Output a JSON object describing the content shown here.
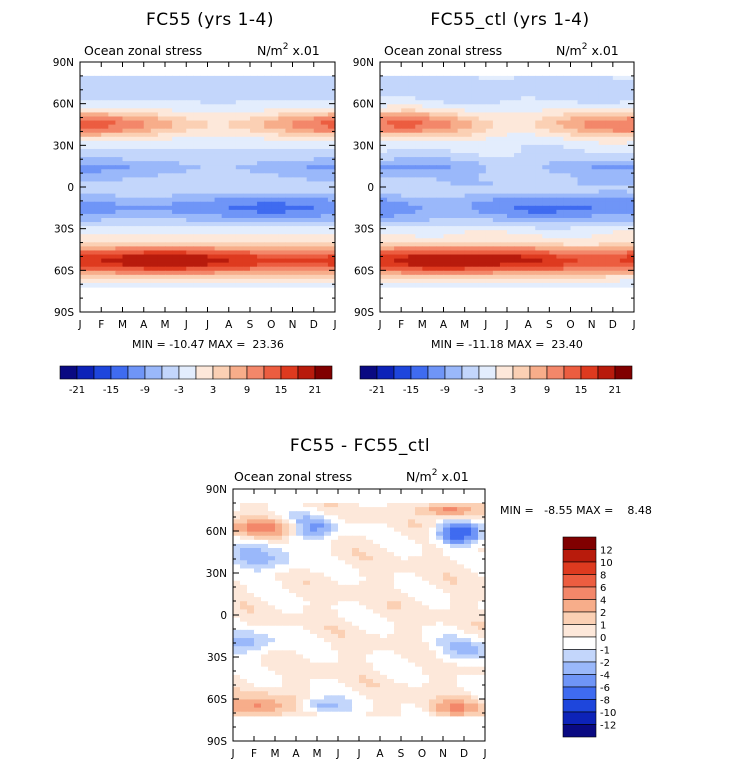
{
  "colors": {
    "palette_24": [
      "#0a0a82",
      "#0d23b8",
      "#1e46dc",
      "#3f6bf0",
      "#6f95f7",
      "#9ab8fa",
      "#c3d6fb",
      "#e3edfd",
      "#fde8da",
      "#fbd0b4",
      "#f7ad8a",
      "#f3876a",
      "#ec5d40",
      "#de3a1f",
      "#b81b0c",
      "#800000"
    ],
    "palette_diff": [
      "#0a0a82",
      "#0d23b8",
      "#1e46dc",
      "#3f6bf0",
      "#6f95f7",
      "#9ab8fa",
      "#c3d6fb",
      "#ffffff",
      "#fde8da",
      "#fbd0b4",
      "#f7ad8a",
      "#f3876a",
      "#ec5d40",
      "#de3a1f",
      "#b81b0c",
      "#800000"
    ]
  },
  "chart_data": [
    {
      "type": "heatmap",
      "title": "FC55 (yrs 1-4)",
      "subtitle_left": "Ocean zonal stress",
      "units_base": "N/m",
      "units_exp": "2",
      "units_scale": " x.01",
      "x_ticks": [
        "J",
        "F",
        "M",
        "A",
        "M",
        "J",
        "J",
        "A",
        "S",
        "O",
        "N",
        "D",
        "J"
      ],
      "y_ticks": [
        "90N",
        "60N",
        "30N",
        "0",
        "30S",
        "60S",
        "90S"
      ],
      "stats": "MIN = -10.47 MAX =  23.36",
      "colorbar_labels": [
        "-21",
        "-15",
        "-9",
        "-3",
        "3",
        "9",
        "15",
        "21"
      ],
      "levels": [
        -21,
        -18,
        -15,
        -12,
        -9,
        -6,
        -3,
        0,
        3,
        6,
        9,
        12,
        15,
        18,
        21,
        24
      ]
    },
    {
      "type": "heatmap",
      "title": "FC55_ctl (yrs 1-4)",
      "subtitle_left": "Ocean zonal stress",
      "units_base": "N/m",
      "units_exp": "2",
      "units_scale": " x.01",
      "x_ticks": [
        "J",
        "F",
        "M",
        "A",
        "M",
        "J",
        "J",
        "A",
        "S",
        "O",
        "N",
        "D",
        "J"
      ],
      "y_ticks": [
        "90N",
        "60N",
        "30N",
        "0",
        "30S",
        "60S",
        "90S"
      ],
      "stats": "MIN = -11.18 MAX =  23.40",
      "colorbar_labels": [
        "-21",
        "-15",
        "-9",
        "-3",
        "3",
        "9",
        "15",
        "21"
      ],
      "levels": [
        -21,
        -18,
        -15,
        -12,
        -9,
        -6,
        -3,
        0,
        3,
        6,
        9,
        12,
        15,
        18,
        21,
        24
      ]
    },
    {
      "type": "heatmap",
      "title": "FC55 - FC55_ctl",
      "subtitle_left": "Ocean zonal stress",
      "units_base": "N/m",
      "units_exp": "2",
      "units_scale": " x.01",
      "x_ticks": [
        "J",
        "F",
        "M",
        "A",
        "M",
        "J",
        "J",
        "A",
        "S",
        "O",
        "N",
        "D",
        "J"
      ],
      "y_ticks": [
        "90N",
        "60N",
        "30N",
        "0",
        "30S",
        "60S",
        "90S"
      ],
      "stats": "MIN =   -8.55 MAX =    8.48",
      "colorbar_labels": [
        "12",
        "10",
        "8",
        "6",
        "4",
        "2",
        "1",
        "0",
        "-1",
        "-2",
        "-4",
        "-6",
        "-8",
        "-10",
        "-12"
      ],
      "levels": [
        -12,
        -10,
        -8,
        -6,
        -4,
        -2,
        -1,
        0,
        1,
        2,
        4,
        6,
        8,
        10,
        12
      ]
    }
  ]
}
